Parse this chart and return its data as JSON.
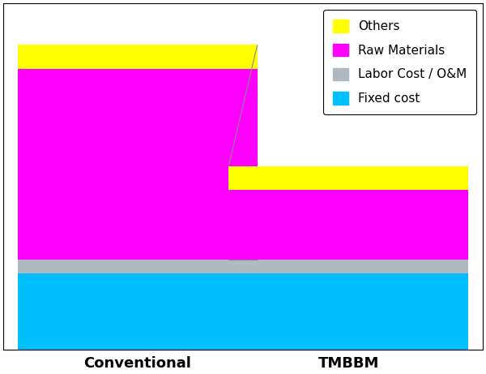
{
  "categories": [
    "Conventional",
    "TMBBM"
  ],
  "segments": {
    "Fixed cost": {
      "values": [
        22,
        22
      ],
      "color": "#00BFFF"
    },
    "Labor Cost / O&M": {
      "values": [
        4,
        4
      ],
      "color": "#B0B8C0"
    },
    "Raw Materials": {
      "values": [
        55,
        20
      ],
      "color": "#FF00FF"
    },
    "Others": {
      "values": [
        7,
        7
      ],
      "color": "#FFFF00"
    }
  },
  "bar_width": 0.5,
  "bar_positions": [
    0.28,
    0.72
  ],
  "xlim": [
    0,
    1
  ],
  "ylim": [
    0,
    100
  ],
  "legend_labels": [
    "Others",
    "Raw Materials",
    "Labor Cost / O&M",
    "Fixed cost"
  ],
  "legend_colors": [
    "#FFFF00",
    "#FF00FF",
    "#B0B8C0",
    "#00BFFF"
  ],
  "connector_color": "#888888",
  "background_color": "#FFFFFF",
  "tick_label_fontsize": 13,
  "legend_fontsize": 11
}
